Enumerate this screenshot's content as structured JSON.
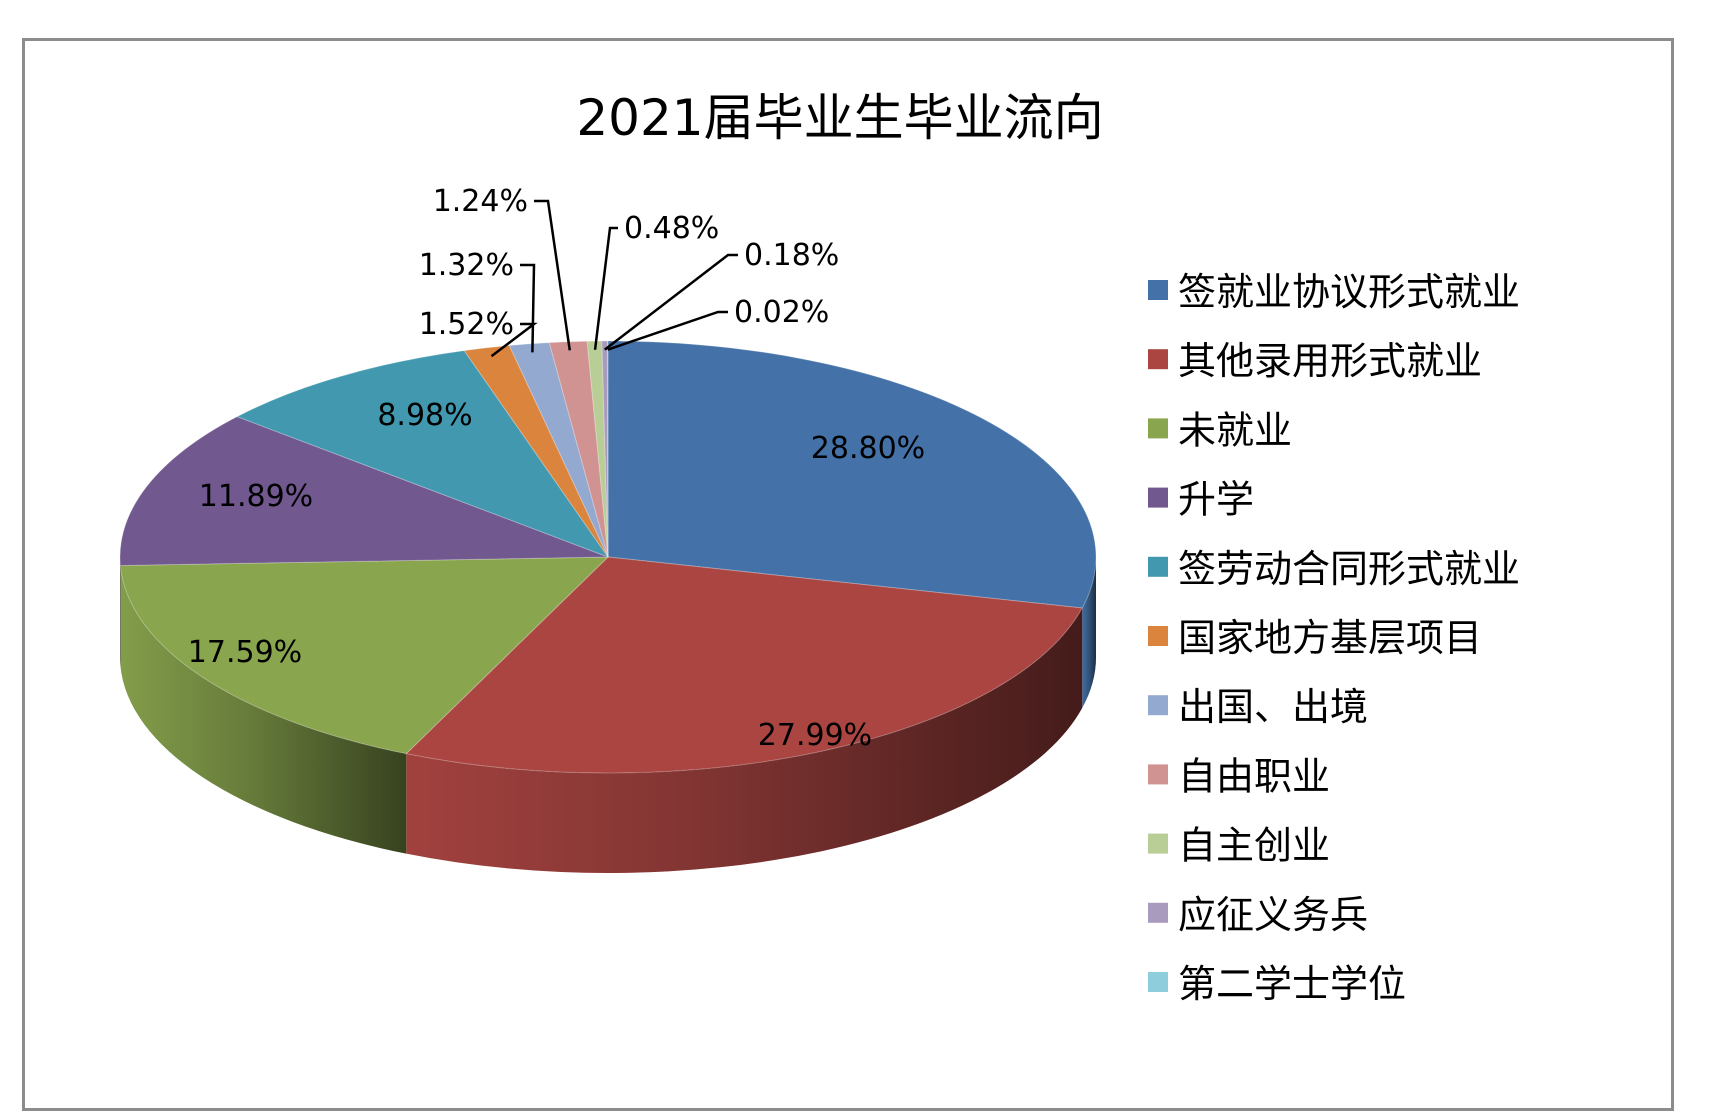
{
  "chart_data": {
    "type": "pie",
    "title": "2021届毕业生毕业流向",
    "categories": [
      "签就业协议形式就业",
      "其他录用形式就业",
      "未就业",
      "升学",
      "签劳动合同形式就业",
      "国家地方基层项目",
      "出国、出境",
      "自由职业",
      "自主创业",
      "应征义务兵",
      "第二学士学位"
    ],
    "values": [
      28.8,
      27.99,
      17.59,
      11.89,
      8.98,
      1.52,
      1.32,
      1.24,
      0.48,
      0.18,
      0.02
    ],
    "labels": [
      "28.80%",
      "27.99%",
      "17.59%",
      "11.89%",
      "8.98%",
      "1.52%",
      "1.32%",
      "1.24%",
      "0.48%",
      "0.18%",
      "0.02%"
    ],
    "colors": [
      "#4472a8",
      "#aa4542",
      "#89a54e",
      "#71588f",
      "#4198af",
      "#db843d",
      "#93a9cf",
      "#d19392",
      "#b9cd96",
      "#a99bbd",
      "#8ecddc"
    ],
    "legend_position": "right",
    "style": "3d"
  }
}
